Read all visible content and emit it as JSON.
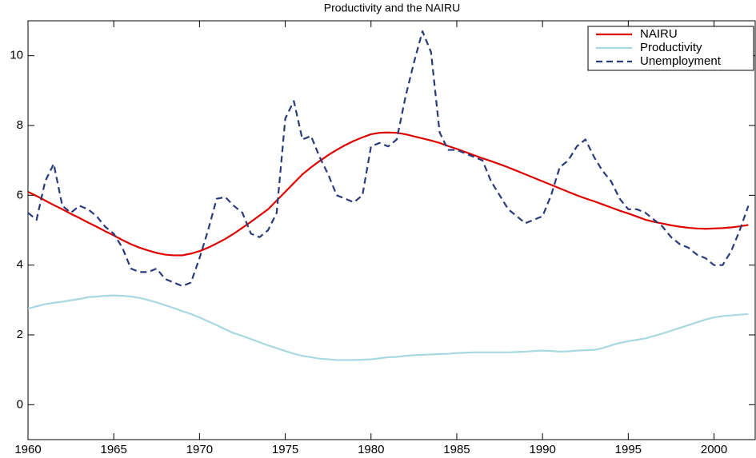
{
  "chart_data": {
    "type": "line",
    "title": "Productivity and the NAIRU",
    "x": [
      1960,
      1960.5,
      1961,
      1961.5,
      1962,
      1962.5,
      1963,
      1963.5,
      1964,
      1964.5,
      1965,
      1965.5,
      1966,
      1966.5,
      1967,
      1967.5,
      1968,
      1968.5,
      1969,
      1969.5,
      1970,
      1970.5,
      1971,
      1971.5,
      1972,
      1972.5,
      1973,
      1973.5,
      1974,
      1974.5,
      1975,
      1975.5,
      1976,
      1976.5,
      1977,
      1977.5,
      1978,
      1978.5,
      1979,
      1979.5,
      1980,
      1980.5,
      1981,
      1981.5,
      1982,
      1982.5,
      1983,
      1983.5,
      1984,
      1984.5,
      1985,
      1985.5,
      1986,
      1986.5,
      1987,
      1987.5,
      1988,
      1988.5,
      1989,
      1989.5,
      1990,
      1990.5,
      1991,
      1991.5,
      1992,
      1992.5,
      1993,
      1993.5,
      1994,
      1994.5,
      1995,
      1995.5,
      1996,
      1996.5,
      1997,
      1997.5,
      1998,
      1998.5,
      1999,
      1999.5,
      2000,
      2000.5,
      2001,
      2001.5,
      2002
    ],
    "series": [
      {
        "name": "NAIRU",
        "color": "#e00000",
        "dash": false,
        "values": [
          6.1,
          5.98,
          5.85,
          5.72,
          5.6,
          5.47,
          5.35,
          5.22,
          5.1,
          4.97,
          4.85,
          4.72,
          4.6,
          4.5,
          4.42,
          4.35,
          4.3,
          4.28,
          4.28,
          4.33,
          4.4,
          4.5,
          4.62,
          4.75,
          4.9,
          5.07,
          5.24,
          5.42,
          5.6,
          5.85,
          6.1,
          6.35,
          6.6,
          6.8,
          6.98,
          7.15,
          7.3,
          7.44,
          7.56,
          7.66,
          7.75,
          7.79,
          7.8,
          7.79,
          7.75,
          7.69,
          7.63,
          7.57,
          7.5,
          7.41,
          7.33,
          7.24,
          7.15,
          7.06,
          6.98,
          6.89,
          6.8,
          6.7,
          6.6,
          6.5,
          6.4,
          6.3,
          6.2,
          6.1,
          6.0,
          5.91,
          5.83,
          5.74,
          5.65,
          5.56,
          5.48,
          5.39,
          5.3,
          5.24,
          5.19,
          5.14,
          5.1,
          5.07,
          5.05,
          5.04,
          5.05,
          5.06,
          5.08,
          5.11,
          5.15
        ]
      },
      {
        "name": "Productivity",
        "color": "#a8d8e0",
        "dash": false,
        "values": [
          2.75,
          2.82,
          2.88,
          2.92,
          2.95,
          2.99,
          3.03,
          3.08,
          3.1,
          3.12,
          3.13,
          3.12,
          3.1,
          3.06,
          3.0,
          2.93,
          2.85,
          2.77,
          2.68,
          2.6,
          2.5,
          2.39,
          2.28,
          2.16,
          2.05,
          1.97,
          1.88,
          1.79,
          1.7,
          1.62,
          1.54,
          1.46,
          1.4,
          1.36,
          1.32,
          1.3,
          1.28,
          1.28,
          1.28,
          1.29,
          1.3,
          1.33,
          1.36,
          1.37,
          1.4,
          1.42,
          1.43,
          1.44,
          1.45,
          1.46,
          1.48,
          1.49,
          1.5,
          1.5,
          1.5,
          1.5,
          1.5,
          1.51,
          1.52,
          1.54,
          1.55,
          1.54,
          1.52,
          1.53,
          1.55,
          1.56,
          1.57,
          1.62,
          1.7,
          1.77,
          1.82,
          1.86,
          1.9,
          1.97,
          2.04,
          2.12,
          2.2,
          2.28,
          2.36,
          2.44,
          2.5,
          2.54,
          2.56,
          2.58,
          2.6
        ]
      },
      {
        "name": "Unemployment",
        "color": "#2b3a7a",
        "dash": true,
        "values": [
          5.5,
          5.3,
          6.4,
          6.9,
          5.7,
          5.5,
          5.7,
          5.6,
          5.4,
          5.1,
          4.9,
          4.5,
          3.9,
          3.8,
          3.8,
          3.9,
          3.6,
          3.5,
          3.4,
          3.5,
          4.2,
          5.0,
          5.9,
          5.95,
          5.7,
          5.5,
          4.9,
          4.8,
          5.0,
          5.5,
          8.2,
          8.7,
          7.6,
          7.7,
          7.1,
          6.6,
          6.0,
          5.9,
          5.8,
          6.0,
          7.4,
          7.5,
          7.4,
          7.6,
          8.8,
          9.8,
          10.7,
          10.1,
          7.8,
          7.3,
          7.3,
          7.2,
          7.1,
          7.0,
          6.4,
          6.0,
          5.6,
          5.4,
          5.2,
          5.3,
          5.4,
          6.0,
          6.8,
          7.0,
          7.4,
          7.6,
          7.1,
          6.7,
          6.4,
          5.9,
          5.6,
          5.6,
          5.5,
          5.3,
          5.1,
          4.8,
          4.6,
          4.5,
          4.3,
          4.2,
          4.0,
          4.0,
          4.4,
          5.0,
          5.7
        ]
      }
    ],
    "xlim": [
      1960,
      2002.4
    ],
    "ylim": [
      -1,
      11
    ],
    "xticks": [
      1960,
      1965,
      1970,
      1975,
      1980,
      1985,
      1990,
      1995,
      2000
    ],
    "yticks": [
      0,
      2,
      4,
      6,
      8,
      10
    ],
    "legend": "top-right",
    "grid": false
  }
}
